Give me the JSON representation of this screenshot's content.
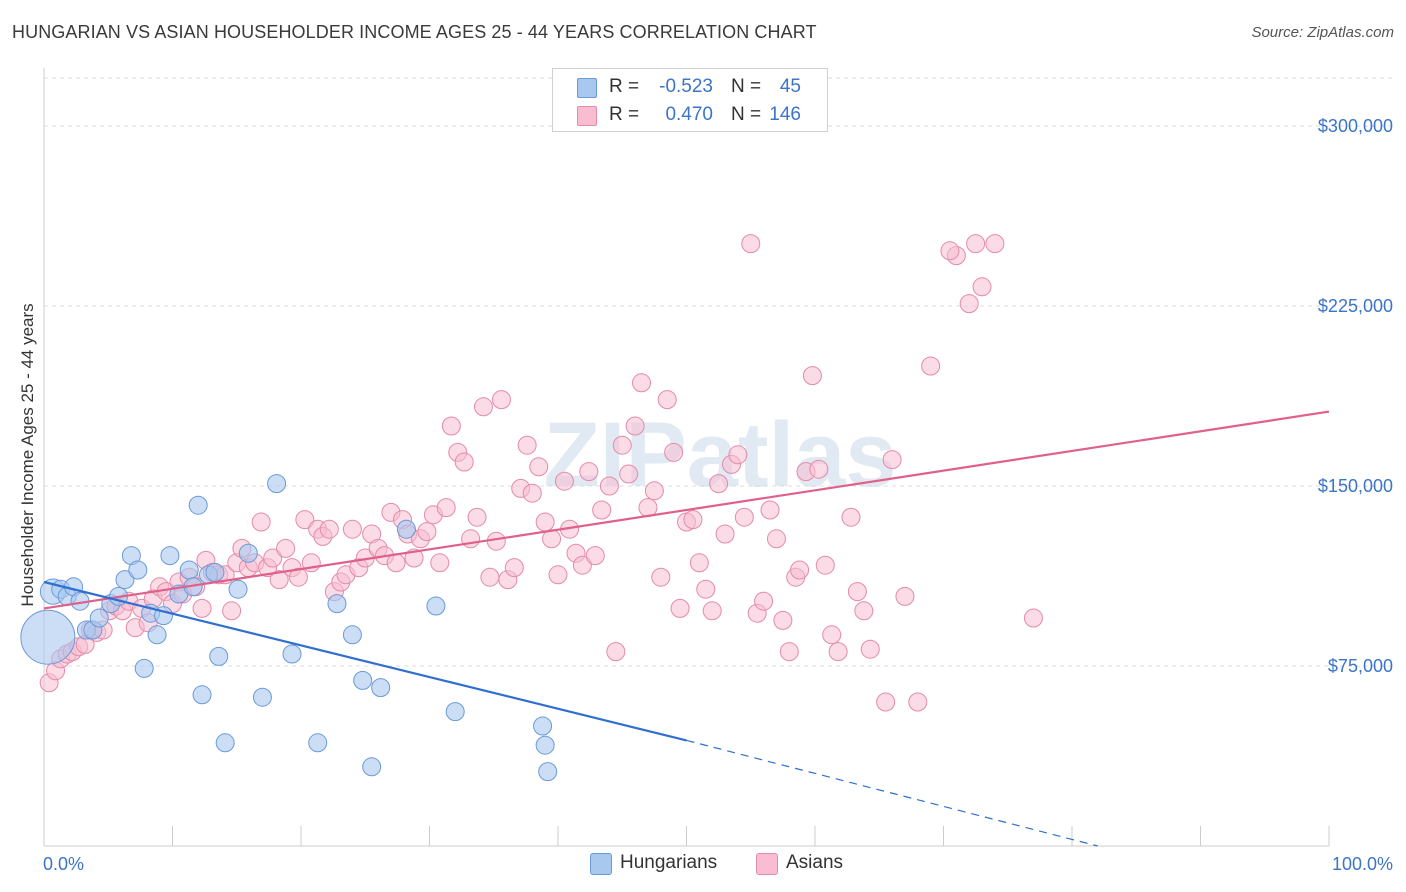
{
  "header": {
    "title": "HUNGARIAN VS ASIAN HOUSEHOLDER INCOME AGES 25 - 44 YEARS CORRELATION CHART",
    "source": "Source: ZipAtlas.com"
  },
  "watermark": "ZIPatlas",
  "legend": {
    "rows": [
      {
        "r_label": "R =",
        "r_value": "-0.523",
        "n_label": "N =",
        "n_value": "45"
      },
      {
        "r_label": "R =",
        "r_value": "0.470",
        "n_label": "N =",
        "n_value": "146"
      }
    ]
  },
  "bottom_legend": {
    "hungarians": "Hungarians",
    "asians": "Asians"
  },
  "colors": {
    "hungarian_fill": "#a9c8f0",
    "hungarian_stroke": "#6a9ad8",
    "hungarian_line": "#2f6fd0",
    "asian_fill": "#f8bdd0",
    "asian_stroke": "#e58aaa",
    "asian_line": "#e0608a",
    "tick_label": "#3c74c8",
    "grid": "#dddddd"
  },
  "chart_data": {
    "type": "scatter",
    "title": "HUNGARIAN VS ASIAN HOUSEHOLDER INCOME AGES 25 - 44 YEARS CORRELATION CHART",
    "xlabel": "",
    "ylabel": "Householder Income Ages 25 - 44 years",
    "xlim": [
      0,
      100
    ],
    "ylim": [
      0,
      320000
    ],
    "x_tick_labels": [
      "0.0%",
      "100.0%"
    ],
    "y_ticks": [
      75000,
      150000,
      225000,
      300000
    ],
    "y_tick_labels": [
      "$75,000",
      "$150,000",
      "$225,000",
      "$300,000"
    ],
    "grid": true,
    "legend_position": "top-center",
    "series": [
      {
        "name": "Hungarians",
        "r": -0.523,
        "n": 45,
        "trend": {
          "x0": 0,
          "y0": 110000,
          "x1": 50,
          "y1": 44000,
          "dashed_to_x": 82,
          "dashed_to_y": 0
        },
        "points": [
          [
            0.3,
            87000,
            3
          ],
          [
            0.7,
            106000,
            1.4
          ],
          [
            1.3,
            107000,
            1
          ],
          [
            1.8,
            104000,
            1
          ],
          [
            2.3,
            108000,
            1
          ],
          [
            2.8,
            102000,
            1
          ],
          [
            3.3,
            90000,
            1
          ],
          [
            3.8,
            90000,
            1
          ],
          [
            4.3,
            95000,
            1
          ],
          [
            5.2,
            101000,
            1
          ],
          [
            5.8,
            104000,
            1
          ],
          [
            6.3,
            111000,
            1
          ],
          [
            6.8,
            121000,
            1
          ],
          [
            7.3,
            115000,
            1
          ],
          [
            7.8,
            74000,
            1
          ],
          [
            8.3,
            97000,
            1
          ],
          [
            8.8,
            88000,
            1
          ],
          [
            9.3,
            96000,
            1
          ],
          [
            9.8,
            121000,
            1
          ],
          [
            10.5,
            105000,
            1
          ],
          [
            11.3,
            115000,
            1
          ],
          [
            11.6,
            108000,
            1
          ],
          [
            12.0,
            142000,
            1
          ],
          [
            12.3,
            63000,
            1
          ],
          [
            12.8,
            113000,
            1
          ],
          [
            13.3,
            114000,
            1
          ],
          [
            13.6,
            79000,
            1
          ],
          [
            14.1,
            43000,
            1
          ],
          [
            15.1,
            107000,
            1
          ],
          [
            15.9,
            122000,
            1
          ],
          [
            17.0,
            62000,
            1
          ],
          [
            18.1,
            151000,
            1
          ],
          [
            19.3,
            80000,
            1
          ],
          [
            21.3,
            43000,
            1
          ],
          [
            22.8,
            101000,
            1
          ],
          [
            24.0,
            88000,
            1
          ],
          [
            24.8,
            69000,
            1
          ],
          [
            25.5,
            33000,
            1
          ],
          [
            26.2,
            66000,
            1
          ],
          [
            28.2,
            132000,
            1
          ],
          [
            30.5,
            100000,
            1
          ],
          [
            32.0,
            56000,
            1
          ],
          [
            38.8,
            50000,
            1
          ],
          [
            39.0,
            42000,
            1
          ],
          [
            39.2,
            31000,
            1
          ]
        ]
      },
      {
        "name": "Asians",
        "r": 0.47,
        "n": 146,
        "trend": {
          "x0": 0,
          "y0": 99000,
          "x1": 100,
          "y1": 181000
        },
        "points": [
          [
            0.4,
            68000
          ],
          [
            0.9,
            73000
          ],
          [
            1.3,
            78000
          ],
          [
            1.8,
            80000
          ],
          [
            2.2,
            81000
          ],
          [
            2.7,
            83000
          ],
          [
            3.2,
            84000
          ],
          [
            3.6,
            90000
          ],
          [
            4.1,
            89000
          ],
          [
            4.6,
            90000
          ],
          [
            5.1,
            98000
          ],
          [
            5.6,
            100000
          ],
          [
            6.1,
            98000
          ],
          [
            6.6,
            102000
          ],
          [
            7.1,
            91000
          ],
          [
            7.6,
            99000
          ],
          [
            8.1,
            93000
          ],
          [
            8.5,
            103000
          ],
          [
            9.0,
            108000
          ],
          [
            9.5,
            106000
          ],
          [
            10.0,
            101000
          ],
          [
            10.5,
            110000
          ],
          [
            10.8,
            105000
          ],
          [
            11.3,
            112000
          ],
          [
            11.8,
            108000
          ],
          [
            12.3,
            99000
          ],
          [
            12.6,
            119000
          ],
          [
            13.1,
            114000
          ],
          [
            13.6,
            113000
          ],
          [
            14.1,
            113000
          ],
          [
            14.6,
            98000
          ],
          [
            15.0,
            118000
          ],
          [
            15.4,
            124000
          ],
          [
            15.9,
            116000
          ],
          [
            16.4,
            118000
          ],
          [
            16.9,
            135000
          ],
          [
            17.4,
            116000
          ],
          [
            17.8,
            120000
          ],
          [
            18.3,
            111000
          ],
          [
            18.8,
            124000
          ],
          [
            19.3,
            116000
          ],
          [
            19.8,
            112000
          ],
          [
            20.3,
            136000
          ],
          [
            20.8,
            118000
          ],
          [
            21.3,
            132000
          ],
          [
            21.7,
            129000
          ],
          [
            22.2,
            132000
          ],
          [
            22.6,
            106000
          ],
          [
            23.1,
            110000
          ],
          [
            23.5,
            113000
          ],
          [
            24.0,
            132000
          ],
          [
            24.5,
            116000
          ],
          [
            25.0,
            120000
          ],
          [
            25.5,
            130000
          ],
          [
            26.0,
            124000
          ],
          [
            26.5,
            121000
          ],
          [
            27.0,
            139000
          ],
          [
            27.4,
            118000
          ],
          [
            27.9,
            136000
          ],
          [
            28.3,
            130000
          ],
          [
            28.8,
            120000
          ],
          [
            29.3,
            128000
          ],
          [
            29.8,
            131000
          ],
          [
            30.3,
            138000
          ],
          [
            30.8,
            118000
          ],
          [
            31.3,
            141000
          ],
          [
            31.7,
            175000
          ],
          [
            32.2,
            164000
          ],
          [
            32.7,
            160000
          ],
          [
            33.2,
            128000
          ],
          [
            33.7,
            137000
          ],
          [
            34.2,
            183000
          ],
          [
            34.7,
            112000
          ],
          [
            35.2,
            127000
          ],
          [
            35.6,
            186000
          ],
          [
            36.1,
            111000
          ],
          [
            36.6,
            116000
          ],
          [
            37.1,
            149000
          ],
          [
            37.6,
            167000
          ],
          [
            38.0,
            147000
          ],
          [
            38.5,
            158000
          ],
          [
            39.0,
            135000
          ],
          [
            39.5,
            128000
          ],
          [
            40.0,
            113000
          ],
          [
            40.5,
            152000
          ],
          [
            40.9,
            132000
          ],
          [
            41.4,
            122000
          ],
          [
            41.9,
            117000
          ],
          [
            42.4,
            156000
          ],
          [
            42.9,
            121000
          ],
          [
            43.4,
            140000
          ],
          [
            44.0,
            150000
          ],
          [
            44.5,
            81000
          ],
          [
            45.0,
            167000
          ],
          [
            45.5,
            155000
          ],
          [
            46.0,
            175000
          ],
          [
            46.5,
            193000
          ],
          [
            47.0,
            141000
          ],
          [
            47.5,
            148000
          ],
          [
            48.0,
            112000
          ],
          [
            48.5,
            186000
          ],
          [
            49.0,
            164000
          ],
          [
            49.5,
            99000
          ],
          [
            50.0,
            135000
          ],
          [
            50.5,
            136000
          ],
          [
            51.0,
            118000
          ],
          [
            51.5,
            107000
          ],
          [
            52.0,
            98000
          ],
          [
            52.5,
            151000
          ],
          [
            53.0,
            130000
          ],
          [
            53.5,
            159000
          ],
          [
            54.0,
            163000
          ],
          [
            54.5,
            137000
          ],
          [
            55.0,
            251000
          ],
          [
            55.5,
            97000
          ],
          [
            56.0,
            102000
          ],
          [
            56.5,
            140000
          ],
          [
            57.0,
            128000
          ],
          [
            57.5,
            94000
          ],
          [
            58.0,
            81000
          ],
          [
            58.5,
            112000
          ],
          [
            58.8,
            115000
          ],
          [
            59.3,
            156000
          ],
          [
            59.8,
            196000
          ],
          [
            60.3,
            157000
          ],
          [
            60.8,
            117000
          ],
          [
            61.3,
            88000
          ],
          [
            61.8,
            81000
          ],
          [
            62.8,
            137000
          ],
          [
            63.3,
            106000
          ],
          [
            63.8,
            98000
          ],
          [
            64.3,
            82000
          ],
          [
            65.5,
            60000
          ],
          [
            66.0,
            161000
          ],
          [
            67.0,
            104000
          ],
          [
            68.0,
            60000
          ],
          [
            69.0,
            200000
          ],
          [
            71.0,
            246000
          ],
          [
            72.5,
            251000
          ],
          [
            74.0,
            251000
          ],
          [
            77.0,
            95000
          ],
          [
            70.5,
            248000
          ],
          [
            73.0,
            233000
          ],
          [
            72.0,
            226000
          ]
        ]
      }
    ]
  }
}
